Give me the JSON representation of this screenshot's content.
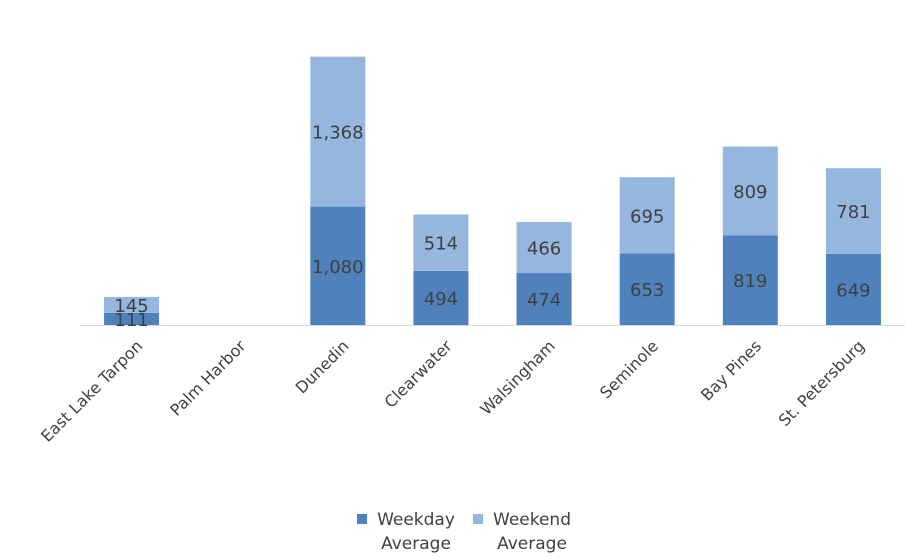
{
  "chart_data": {
    "type": "bar",
    "stacked": true,
    "title": "",
    "xlabel": "",
    "ylabel": "",
    "ylim": [
      0,
      2600
    ],
    "grid": false,
    "legend_position": "bottom",
    "categories": [
      "East Lake Tarpon",
      "Palm Harbor",
      "Dunedin",
      "Clearwater",
      "Walsingham",
      "Seminole",
      "Bay Pines",
      "St. Petersburg"
    ],
    "series": [
      {
        "name": "Weekday Average",
        "color": "#4f81bd",
        "values": [
          111,
          null,
          1080,
          494,
          474,
          653,
          819,
          649
        ],
        "labels": [
          "111",
          "",
          "1,080",
          "494",
          "474",
          "653",
          "819",
          "649"
        ]
      },
      {
        "name": "Weekend Average",
        "color": "#95b6df",
        "values": [
          145,
          null,
          1368,
          514,
          466,
          695,
          809,
          781
        ],
        "labels": [
          "145",
          "",
          "1,368",
          "514",
          "466",
          "695",
          "809",
          "781"
        ]
      }
    ]
  }
}
